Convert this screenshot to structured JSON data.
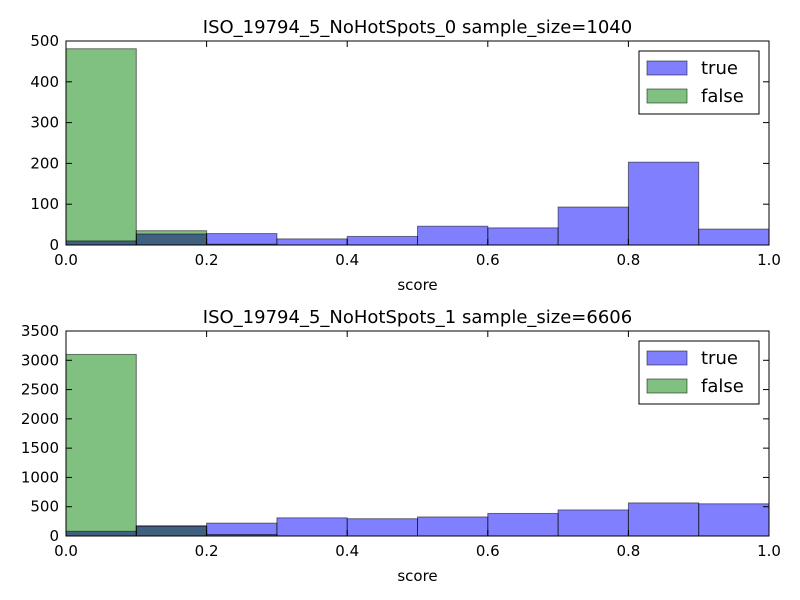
{
  "chart_data": [
    {
      "type": "histogram",
      "title": "ISO_19794_5_NoHotSpots_0 sample_size=1040",
      "xlabel": "score",
      "ylabel": "",
      "xlim": [
        0.0,
        1.0
      ],
      "ylim": [
        0,
        500
      ],
      "xticks": [
        "0.0",
        "0.2",
        "0.4",
        "0.6",
        "0.8",
        "1.0"
      ],
      "yticks": [
        "0",
        "100",
        "200",
        "300",
        "400",
        "500"
      ],
      "bin_edges": [
        0.0,
        0.1,
        0.2,
        0.3,
        0.4,
        0.5,
        0.6,
        0.7,
        0.8,
        0.9,
        1.0
      ],
      "legend": {
        "placement": "top-right"
      },
      "series": [
        {
          "name": "true",
          "color": "#8080ff",
          "values": [
            10,
            27,
            28,
            15,
            21,
            46,
            42,
            93,
            203,
            39
          ]
        },
        {
          "name": "false",
          "color": "#80c080",
          "values": [
            481,
            35,
            2,
            0,
            0,
            0,
            0,
            0,
            0,
            0
          ]
        }
      ]
    },
    {
      "type": "histogram",
      "title": "ISO_19794_5_NoHotSpots_1 sample_size=6606",
      "xlabel": "score",
      "ylabel": "",
      "xlim": [
        0.0,
        1.0
      ],
      "ylim": [
        0,
        3500
      ],
      "xticks": [
        "0.0",
        "0.2",
        "0.4",
        "0.6",
        "0.8",
        "1.0"
      ],
      "yticks": [
        "0",
        "500",
        "1000",
        "1500",
        "2000",
        "2500",
        "3000",
        "3500"
      ],
      "bin_edges": [
        0.0,
        0.1,
        0.2,
        0.3,
        0.4,
        0.5,
        0.6,
        0.7,
        0.8,
        0.9,
        1.0
      ],
      "legend": {
        "placement": "top-right"
      },
      "series": [
        {
          "name": "true",
          "color": "#8080ff",
          "values": [
            80,
            175,
            220,
            310,
            295,
            325,
            385,
            445,
            565,
            550
          ]
        },
        {
          "name": "false",
          "color": "#80c080",
          "values": [
            3100,
            165,
            25,
            0,
            0,
            0,
            0,
            0,
            0,
            0
          ]
        }
      ]
    }
  ]
}
